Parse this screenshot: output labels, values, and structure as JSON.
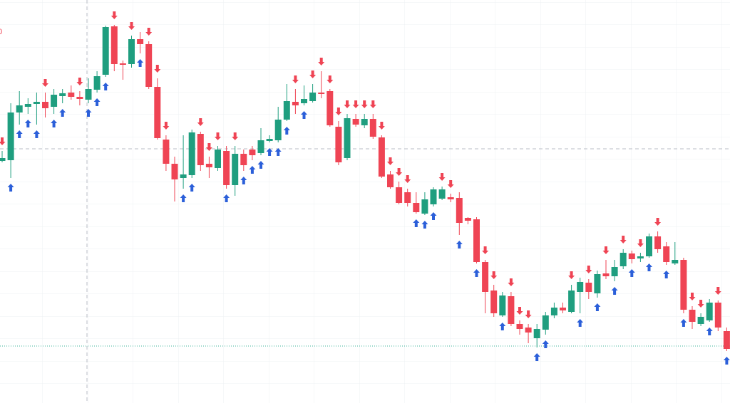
{
  "chart_data": {
    "type": "candlestick",
    "corner_label": "0",
    "up_color": "#1f9e7f",
    "down_color": "#ef4454",
    "buy_color": "#2b5fd9",
    "sell_color": "#ef4454",
    "ylim": [
      0,
      566
    ],
    "open": [
      340,
      341,
      408,
      416,
      420,
      423,
      416,
      431,
      436,
      430,
      426,
      440,
      461,
      529,
      477,
      476,
      511,
      504,
      444,
      370,
      336,
      316,
      320,
      378,
      336,
      330,
      354,
      306,
      350,
      356,
      351,
      368,
      369,
      398,
      423,
      421,
      424,
      436,
      438,
      388,
      344,
      399,
      390,
      399,
      373,
      321,
      303,
      296,
      281,
      266,
      279,
      287,
      289,
      288,
      260,
      258,
      198,
      158,
      123,
      150,
      111,
      106,
      91,
      103,
      123,
      134,
      128,
      156,
      169,
      154,
      182,
      178,
      192,
      210,
      203,
      206,
      234,
      220,
      196,
      201,
      131,
      111,
      116,
      141,
      101,
      78
    ],
    "high": [
      354,
      421,
      438,
      428,
      436,
      436,
      441,
      441,
      446,
      438,
      456,
      466,
      530,
      531,
      481,
      516,
      521,
      508,
      456,
      376,
      346,
      376,
      384,
      381,
      346,
      361,
      361,
      361,
      356,
      361,
      386,
      376,
      416,
      448,
      441,
      446,
      448,
      466,
      441,
      396,
      406,
      406,
      406,
      406,
      376,
      326,
      311,
      301,
      296,
      296,
      303,
      304,
      294,
      296,
      261,
      261,
      201,
      166,
      156,
      156,
      116,
      111,
      111,
      128,
      141,
      141,
      166,
      176,
      174,
      186,
      201,
      201,
      216,
      214,
      211,
      238,
      241,
      226,
      226,
      204,
      136,
      126,
      146,
      144,
      106,
      81
    ],
    "low": [
      338,
      316,
      391,
      406,
      391,
      401,
      406,
      421,
      426,
      418,
      421,
      436,
      458,
      466,
      454,
      471,
      491,
      441,
      370,
      326,
      283,
      301,
      316,
      326,
      316,
      326,
      301,
      291,
      326,
      341,
      348,
      366,
      366,
      396,
      406,
      418,
      422,
      428,
      388,
      334,
      341,
      388,
      386,
      371,
      316,
      301,
      279,
      276,
      266,
      264,
      276,
      285,
      282,
      236,
      251,
      196,
      126,
      121,
      121,
      108,
      96,
      84,
      78,
      96,
      119,
      126,
      126,
      126,
      146,
      148,
      174,
      171,
      188,
      196,
      198,
      204,
      211,
      194,
      194,
      126,
      104,
      108,
      114,
      101,
      73,
      71
    ],
    "close": [
      344,
      408,
      418,
      420,
      423,
      414,
      433,
      435,
      430,
      427,
      441,
      459,
      528,
      476,
      475,
      511,
      504,
      444,
      372,
      336,
      314,
      321,
      380,
      334,
      331,
      356,
      306,
      350,
      334,
      348,
      369,
      371,
      398,
      424,
      418,
      427,
      436,
      434,
      390,
      338,
      400,
      391,
      399,
      374,
      318,
      303,
      281,
      281,
      268,
      286,
      300,
      300,
      286,
      253,
      256,
      198,
      156,
      126,
      151,
      111,
      104,
      99,
      104,
      123,
      134,
      130,
      158,
      170,
      156,
      181,
      178,
      191,
      211,
      202,
      206,
      234,
      216,
      198,
      201,
      131,
      114,
      121,
      141,
      106,
      76,
      74
    ],
    "signals": [
      "down",
      "up",
      "up",
      "up",
      "up",
      "down",
      "up",
      "up",
      null,
      "down",
      "up",
      "up",
      "up",
      "down",
      null,
      "down",
      "up",
      "down",
      "down",
      "down",
      null,
      "up",
      "up",
      "down",
      "down",
      "down",
      "up",
      "down",
      "up",
      "up",
      "up",
      "up",
      "up",
      "up",
      "down",
      "up",
      "down",
      "down",
      "down",
      "down",
      "down",
      "down",
      "down",
      "down",
      "down",
      "down",
      "down",
      "down",
      "up",
      "up",
      "up",
      "down",
      "down",
      "up",
      null,
      "up",
      "down",
      "down",
      "up",
      "down",
      "down",
      "down",
      "up",
      "up",
      null,
      null,
      "down",
      "up",
      "down",
      "up",
      "down",
      "up",
      "down",
      "up",
      "down",
      "up",
      "down",
      "up",
      null,
      "up",
      "down",
      "down",
      "up",
      "down",
      "up",
      "down"
    ]
  }
}
